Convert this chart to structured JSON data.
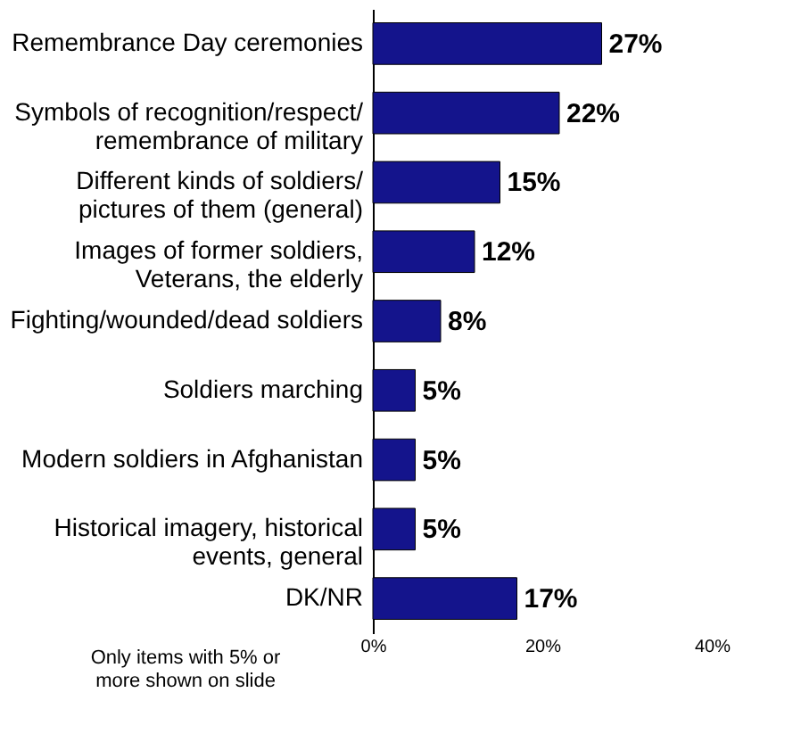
{
  "chart_data": {
    "type": "bar",
    "orientation": "horizontal",
    "categories": [
      "Remembrance Day ceremonies",
      "Symbols of recognition/respect/remembrance of military",
      "Different kinds of soldiers/pictures of them (general)",
      "Images of former soldiers, Veterans, the elderly",
      "Fighting/wounded/dead soldiers",
      "Soldiers marching",
      "Modern soldiers in Afghanistan",
      "Historical imagery, historical events, general",
      "DK/NR"
    ],
    "values": [
      27,
      22,
      15,
      12,
      8,
      5,
      5,
      5,
      17
    ],
    "value_labels": [
      "27%",
      "22%",
      "15%",
      "12%",
      "8%",
      "5%",
      "5%",
      "5%",
      "17%"
    ],
    "color": "#14148c",
    "xlim": [
      0,
      40
    ],
    "xticks": [
      {
        "value": 0,
        "label": "0%"
      },
      {
        "value": 20,
        "label": "20%"
      },
      {
        "value": 40,
        "label": "40%"
      }
    ],
    "grid": false,
    "annotations": [
      "Only items with 5% or more shown on slide"
    ]
  }
}
